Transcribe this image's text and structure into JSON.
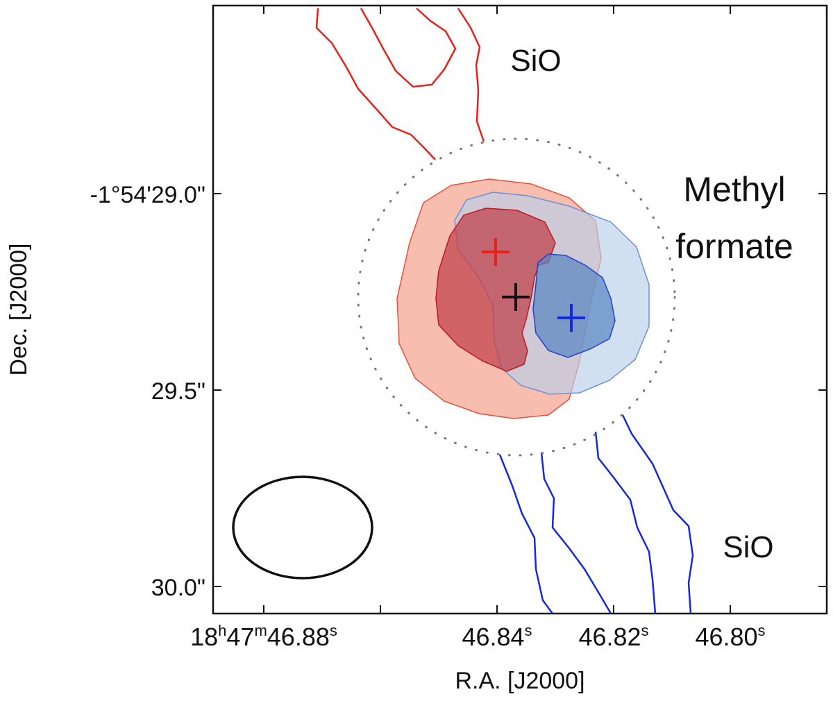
{
  "chart_data": {
    "type": "contour",
    "xlabel": "R.A. [J2000]",
    "ylabel": "Dec. [J2000]",
    "x_ticks": [
      {
        "id": "ra-4688",
        "pre": "18",
        "h": "h",
        "mid": "47",
        "m": "m",
        "post": "46.88",
        "s": "s"
      },
      {
        "id": "ra-4684",
        "pre": "",
        "h": "",
        "mid": "",
        "m": "",
        "post": "46.84",
        "s": "s"
      },
      {
        "id": "ra-4682",
        "pre": "",
        "h": "",
        "mid": "",
        "m": "",
        "post": "46.82",
        "s": "s"
      },
      {
        "id": "ra-4680",
        "pre": "",
        "h": "",
        "mid": "",
        "m": "",
        "post": "46.80",
        "s": "s"
      }
    ],
    "y_ticks": [
      "-1°54'29.0\"",
      "29.5\"",
      "30.0\""
    ],
    "annotations": {
      "sio_north": "SiO",
      "methyl_line1": "Methyl",
      "methyl_line2": "formate",
      "sio_south": "SiO"
    },
    "markers": [
      {
        "name": "red-peak-marker",
        "ra": "46.840",
        "dec": "29.15",
        "color": "#e8201a"
      },
      {
        "name": "center-marker",
        "ra": "46.837",
        "dec": "29.26",
        "color": "#111111"
      },
      {
        "name": "blue-peak-marker",
        "ra": "46.828",
        "dec": "29.31",
        "color": "#1428e0"
      }
    ],
    "colors": {
      "redshifted": "#e8201a",
      "blueshifted": "#1428e0",
      "red_fill_outer": "#f4a38f",
      "red_fill_inner": "#c0404a",
      "blue_fill_outer": "#b8cfea",
      "blue_fill_inner": "#5b86c2"
    },
    "beam": "ellipse, lower-left",
    "grid": false
  }
}
